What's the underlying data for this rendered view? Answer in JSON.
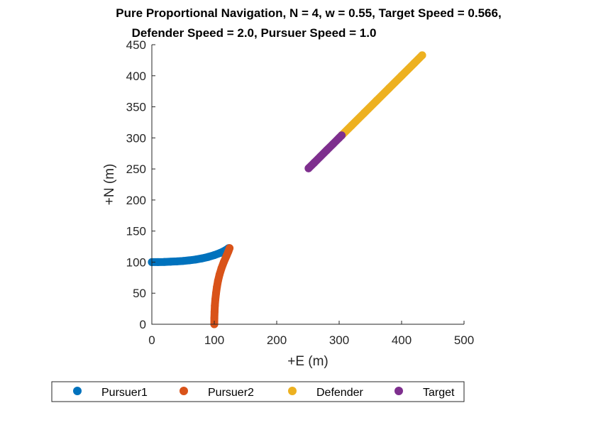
{
  "chart_data": {
    "type": "scatter",
    "title": [
      "Pure Proportional Navigation, N = 4, w = 0.55, Target Speed = 0.566,",
      "Defender Speed = 2.0, Pursuer Speed = 1.0"
    ],
    "xlabel": "+E (m)",
    "ylabel": "+N (m)",
    "xlim": [
      0,
      500
    ],
    "ylim": [
      0,
      450
    ],
    "xticks": [
      0,
      100,
      200,
      300,
      400,
      500
    ],
    "yticks": [
      0,
      50,
      100,
      150,
      200,
      250,
      300,
      350,
      400,
      450
    ],
    "grid": false,
    "legend_position": "bottom",
    "series": [
      {
        "name": "Pursuer1",
        "color": "#0072BD",
        "points": [
          [
            0,
            100
          ],
          [
            10,
            100.1
          ],
          [
            20,
            100.3
          ],
          [
            30,
            100.7
          ],
          [
            40,
            101.2
          ],
          [
            50,
            101.9
          ],
          [
            60,
            102.9
          ],
          [
            70,
            104.2
          ],
          [
            80,
            106
          ],
          [
            90,
            108.3
          ],
          [
            100,
            111.3
          ],
          [
            110,
            115
          ],
          [
            118,
            119
          ],
          [
            123,
            122.5
          ]
        ]
      },
      {
        "name": "Pursuer2",
        "color": "#D95319",
        "points": [
          [
            100,
            0
          ],
          [
            100.1,
            10
          ],
          [
            100.4,
            20
          ],
          [
            100.9,
            30
          ],
          [
            101.7,
            40
          ],
          [
            102.8,
            50
          ],
          [
            104.2,
            60
          ],
          [
            106,
            70
          ],
          [
            108.4,
            80
          ],
          [
            111.5,
            90
          ],
          [
            115.2,
            100
          ],
          [
            119.5,
            110
          ],
          [
            122.5,
            117
          ],
          [
            124.5,
            122.5
          ]
        ]
      },
      {
        "name": "Defender",
        "color": "#EDB120",
        "points": [
          [
            304,
            304
          ],
          [
            320,
            320
          ],
          [
            340,
            340
          ],
          [
            360,
            360
          ],
          [
            380,
            380
          ],
          [
            400,
            400
          ],
          [
            420,
            420
          ],
          [
            433,
            433
          ]
        ]
      },
      {
        "name": "Target",
        "color": "#7E2F8E",
        "points": [
          [
            251,
            251
          ],
          [
            260,
            260
          ],
          [
            270,
            270
          ],
          [
            280,
            280
          ],
          [
            290,
            290
          ],
          [
            300,
            300
          ],
          [
            304,
            304
          ]
        ]
      }
    ]
  }
}
